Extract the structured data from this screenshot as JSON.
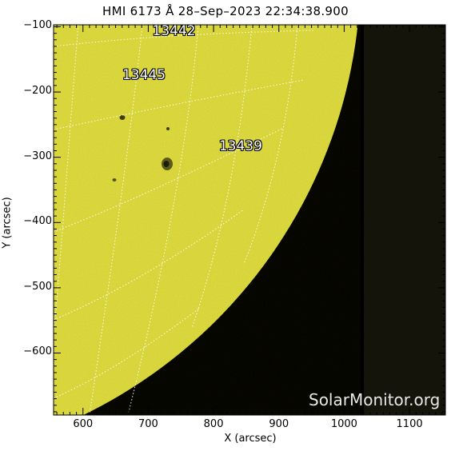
{
  "title": "HMI 6173 Å 28–Sep–2023 22:34:38.900",
  "axes": {
    "xlabel": "X (arcsec)",
    "ylabel": "Y (arcsec)",
    "xlim": [
      555,
      1155
    ],
    "ylim": [
      -695,
      -97
    ],
    "xticks": [
      600,
      700,
      800,
      900,
      1000,
      1100
    ],
    "xtick_labels": [
      "600",
      "700",
      "800",
      "900",
      "1000",
      "1100"
    ],
    "yticks": [
      -100,
      -200,
      -300,
      -400,
      -500,
      -600
    ],
    "ytick_labels": [
      "−100",
      "−200",
      "−300",
      "−400",
      "−500",
      "−600"
    ]
  },
  "solar_disk": {
    "color": "#e3e042",
    "limb_note": "solar limb curves from upper right to lower left"
  },
  "background": {
    "space_color": "#000000",
    "outside_fov_color": "#14140a"
  },
  "active_regions": [
    {
      "id": "13442",
      "x": 743,
      "y": -108
    },
    {
      "id": "13445",
      "x": 697,
      "y": -175
    },
    {
      "id": "13439",
      "x": 845,
      "y": -285
    }
  ],
  "watermark": "SolarMonitor.org"
}
